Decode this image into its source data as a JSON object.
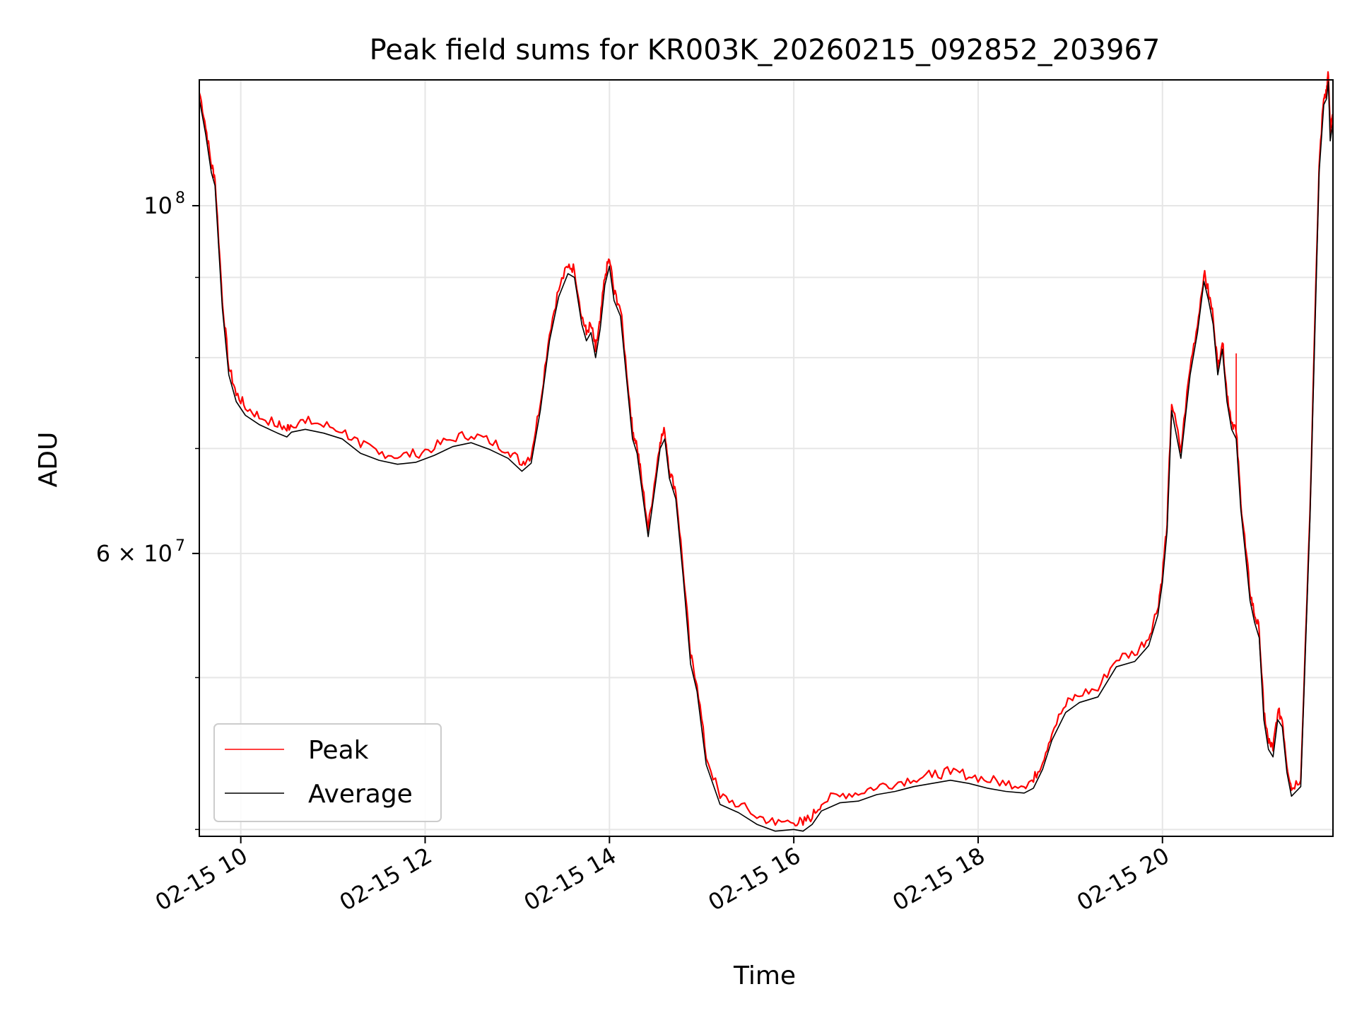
{
  "chart_data": {
    "type": "line",
    "title": "Peak field sums for KR003K_20260215_092852_203967",
    "xlabel": "Time",
    "ylabel": "ADU",
    "x_unit": "hour of 2026-02-15",
    "xlim": [
      9.55,
      21.85
    ],
    "ylim": [
      39600000,
      120300000
    ],
    "yscale": "log",
    "grid": true,
    "legend_position": "lower-left",
    "x_ticks": [
      {
        "value": 10,
        "label": "02-15 10"
      },
      {
        "value": 12,
        "label": "02-15 12"
      },
      {
        "value": 14,
        "label": "02-15 14"
      },
      {
        "value": 16,
        "label": "02-15 16"
      },
      {
        "value": 18,
        "label": "02-15 18"
      },
      {
        "value": 20,
        "label": "02-15 20"
      }
    ],
    "y_major_ticks": [
      {
        "value": 100000000,
        "base": "10",
        "exp": "8"
      },
      {
        "value": 60000000,
        "mant": "6",
        "times": "×",
        "base": "10",
        "exp": "7"
      }
    ],
    "y_minor_gridlines": [
      40000000,
      50000000,
      70000000,
      80000000,
      90000000
    ],
    "series": [
      {
        "name": "Peak",
        "color": "#ff0000",
        "offset_frac": 0.009,
        "spike": {
          "x": 20.8,
          "y": 80500000
        }
      },
      {
        "name": "Average",
        "color": "#000000"
      }
    ],
    "x": [
      9.55,
      9.62,
      9.68,
      9.72,
      9.8,
      9.87,
      9.95,
      10.05,
      10.2,
      10.4,
      10.5,
      10.55,
      10.7,
      10.9,
      11.1,
      11.3,
      11.5,
      11.7,
      11.9,
      12.1,
      12.3,
      12.5,
      12.7,
      12.9,
      13.05,
      13.15,
      13.25,
      13.35,
      13.45,
      13.55,
      13.62,
      13.7,
      13.75,
      13.8,
      13.85,
      13.9,
      13.95,
      14.0,
      14.05,
      14.12,
      14.2,
      14.25,
      14.3,
      14.35,
      14.42,
      14.5,
      14.55,
      14.6,
      14.65,
      14.72,
      14.8,
      14.88,
      14.95,
      15.05,
      15.2,
      15.4,
      15.6,
      15.8,
      16.0,
      16.1,
      16.2,
      16.3,
      16.5,
      16.7,
      16.9,
      17.1,
      17.3,
      17.5,
      17.7,
      17.9,
      18.1,
      18.3,
      18.5,
      18.6,
      18.7,
      18.8,
      18.95,
      19.1,
      19.3,
      19.5,
      19.7,
      19.85,
      19.95,
      20.0,
      20.05,
      20.1,
      20.2,
      20.3,
      20.38,
      20.45,
      20.5,
      20.55,
      20.6,
      20.65,
      20.7,
      20.75,
      20.8,
      20.85,
      20.9,
      20.95,
      21.0,
      21.05,
      21.1,
      21.15,
      21.2,
      21.25,
      21.3,
      21.35,
      21.4,
      21.5,
      21.6,
      21.7,
      21.75,
      21.78,
      21.8,
      21.82,
      21.85
    ],
    "average": [
      117000000,
      111000000,
      105000000,
      103000000,
      86000000,
      78000000,
      75000000,
      73500000,
      72500000,
      71600000,
      71200000,
      71700000,
      72000000,
      71600000,
      71000000,
      69500000,
      68800000,
      68400000,
      68600000,
      69300000,
      70200000,
      70600000,
      69900000,
      69000000,
      67700000,
      68500000,
      74000000,
      82000000,
      87500000,
      90500000,
      90000000,
      84000000,
      82000000,
      83000000,
      80000000,
      83500000,
      89000000,
      91500000,
      87000000,
      85000000,
      76000000,
      71000000,
      69500000,
      66000000,
      61500000,
      66500000,
      70000000,
      71000000,
      67000000,
      65000000,
      58000000,
      51000000,
      49000000,
      44000000,
      41500000,
      41000000,
      40300000,
      39900000,
      40000000,
      39900000,
      40300000,
      41100000,
      41600000,
      41700000,
      42100000,
      42300000,
      42600000,
      42800000,
      43000000,
      42800000,
      42500000,
      42300000,
      42200000,
      42500000,
      43700000,
      45600000,
      47500000,
      48200000,
      48600000,
      50800000,
      51200000,
      52400000,
      54800000,
      57500000,
      62000000,
      74000000,
      69000000,
      78000000,
      83000000,
      89500000,
      87000000,
      84000000,
      78000000,
      81000000,
      75000000,
      72000000,
      71000000,
      64000000,
      60000000,
      56000000,
      54200000,
      53000000,
      47000000,
      45000000,
      44500000,
      47000000,
      46500000,
      43500000,
      42000000,
      42600000,
      63000000,
      105000000,
      116000000,
      117000000,
      120000000,
      110000000,
      113000000
    ]
  }
}
